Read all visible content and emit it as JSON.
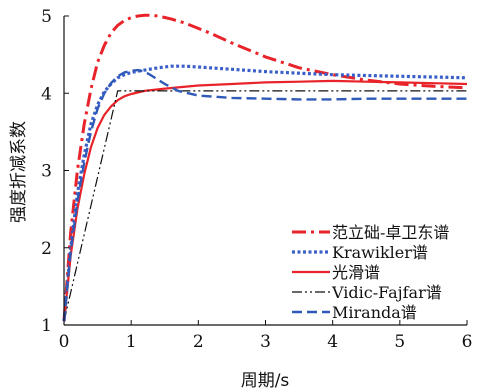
{
  "chart_data": {
    "type": "line",
    "xlabel": "周期/s",
    "ylabel": "强度折减系数",
    "xlim": [
      0,
      6
    ],
    "ylim": [
      1,
      5
    ],
    "xticks": [
      0,
      1,
      2,
      3,
      4,
      5,
      6
    ],
    "yticks": [
      1,
      2,
      3,
      4,
      5
    ],
    "legend_position": "lower-right",
    "series": [
      {
        "name": "范立础-卓卫东谱",
        "color": "#e8232a",
        "style": "dashdot",
        "x": [
          0,
          0.1,
          0.2,
          0.3,
          0.4,
          0.5,
          0.6,
          0.7,
          0.8,
          0.9,
          1.0,
          1.1,
          1.2,
          1.3,
          1.4,
          1.5,
          1.6,
          1.8,
          2.0,
          2.2,
          2.5,
          3.0,
          3.5,
          4.0,
          4.5,
          5.0,
          5.5,
          6.0
        ],
        "y": [
          1.05,
          2.2,
          3.0,
          3.6,
          4.05,
          4.4,
          4.62,
          4.78,
          4.88,
          4.94,
          4.98,
          5.0,
          5.01,
          5.01,
          5.0,
          4.98,
          4.96,
          4.91,
          4.84,
          4.77,
          4.65,
          4.47,
          4.33,
          4.24,
          4.17,
          4.12,
          4.09,
          4.07
        ]
      },
      {
        "name": "Krawikler谱",
        "color": "#3a5fc8",
        "style": "dotted",
        "x": [
          0,
          0.1,
          0.2,
          0.3,
          0.4,
          0.5,
          0.6,
          0.7,
          0.8,
          0.9,
          1.0,
          1.2,
          1.4,
          1.6,
          1.8,
          2.0,
          2.5,
          3.0,
          3.5,
          4.0,
          4.5,
          5.0,
          5.5,
          6.0
        ],
        "y": [
          1.05,
          2.0,
          2.7,
          3.2,
          3.6,
          3.85,
          4.02,
          4.12,
          4.2,
          4.24,
          4.27,
          4.3,
          4.33,
          4.35,
          4.35,
          4.34,
          4.31,
          4.28,
          4.26,
          4.24,
          4.23,
          4.22,
          4.21,
          4.2
        ]
      },
      {
        "name": "光滑谱",
        "color": "#e8232a",
        "style": "solid",
        "x": [
          0,
          0.1,
          0.2,
          0.3,
          0.4,
          0.5,
          0.6,
          0.7,
          0.8,
          0.9,
          1.0,
          1.2,
          1.5,
          2.0,
          2.5,
          3.0,
          3.5,
          4.0,
          4.5,
          5.0,
          5.5,
          6.0
        ],
        "y": [
          1.05,
          1.9,
          2.5,
          2.95,
          3.3,
          3.55,
          3.72,
          3.83,
          3.91,
          3.96,
          3.99,
          4.03,
          4.06,
          4.1,
          4.12,
          4.14,
          4.15,
          4.16,
          4.15,
          4.14,
          4.13,
          4.12
        ]
      },
      {
        "name": "Vidic-Fajfar谱",
        "color": "#111111",
        "style": "dashdotdot",
        "x": [
          0,
          0.8,
          6.0
        ],
        "y": [
          1.05,
          4.03,
          4.03
        ]
      },
      {
        "name": "Miranda谱",
        "color": "#2f5ab8",
        "style": "dashed",
        "x": [
          0,
          0.1,
          0.2,
          0.3,
          0.4,
          0.5,
          0.6,
          0.7,
          0.8,
          0.9,
          1.0,
          1.1,
          1.2,
          1.3,
          1.5,
          1.7,
          2.0,
          2.5,
          3.0,
          3.5,
          4.0,
          4.5,
          5.0,
          5.5,
          6.0
        ],
        "y": [
          1.05,
          1.95,
          2.6,
          3.1,
          3.5,
          3.8,
          4.0,
          4.13,
          4.22,
          4.27,
          4.29,
          4.3,
          4.28,
          4.23,
          4.12,
          4.03,
          3.97,
          3.94,
          3.93,
          3.92,
          3.92,
          3.93,
          3.93,
          3.93,
          3.93
        ]
      }
    ]
  }
}
